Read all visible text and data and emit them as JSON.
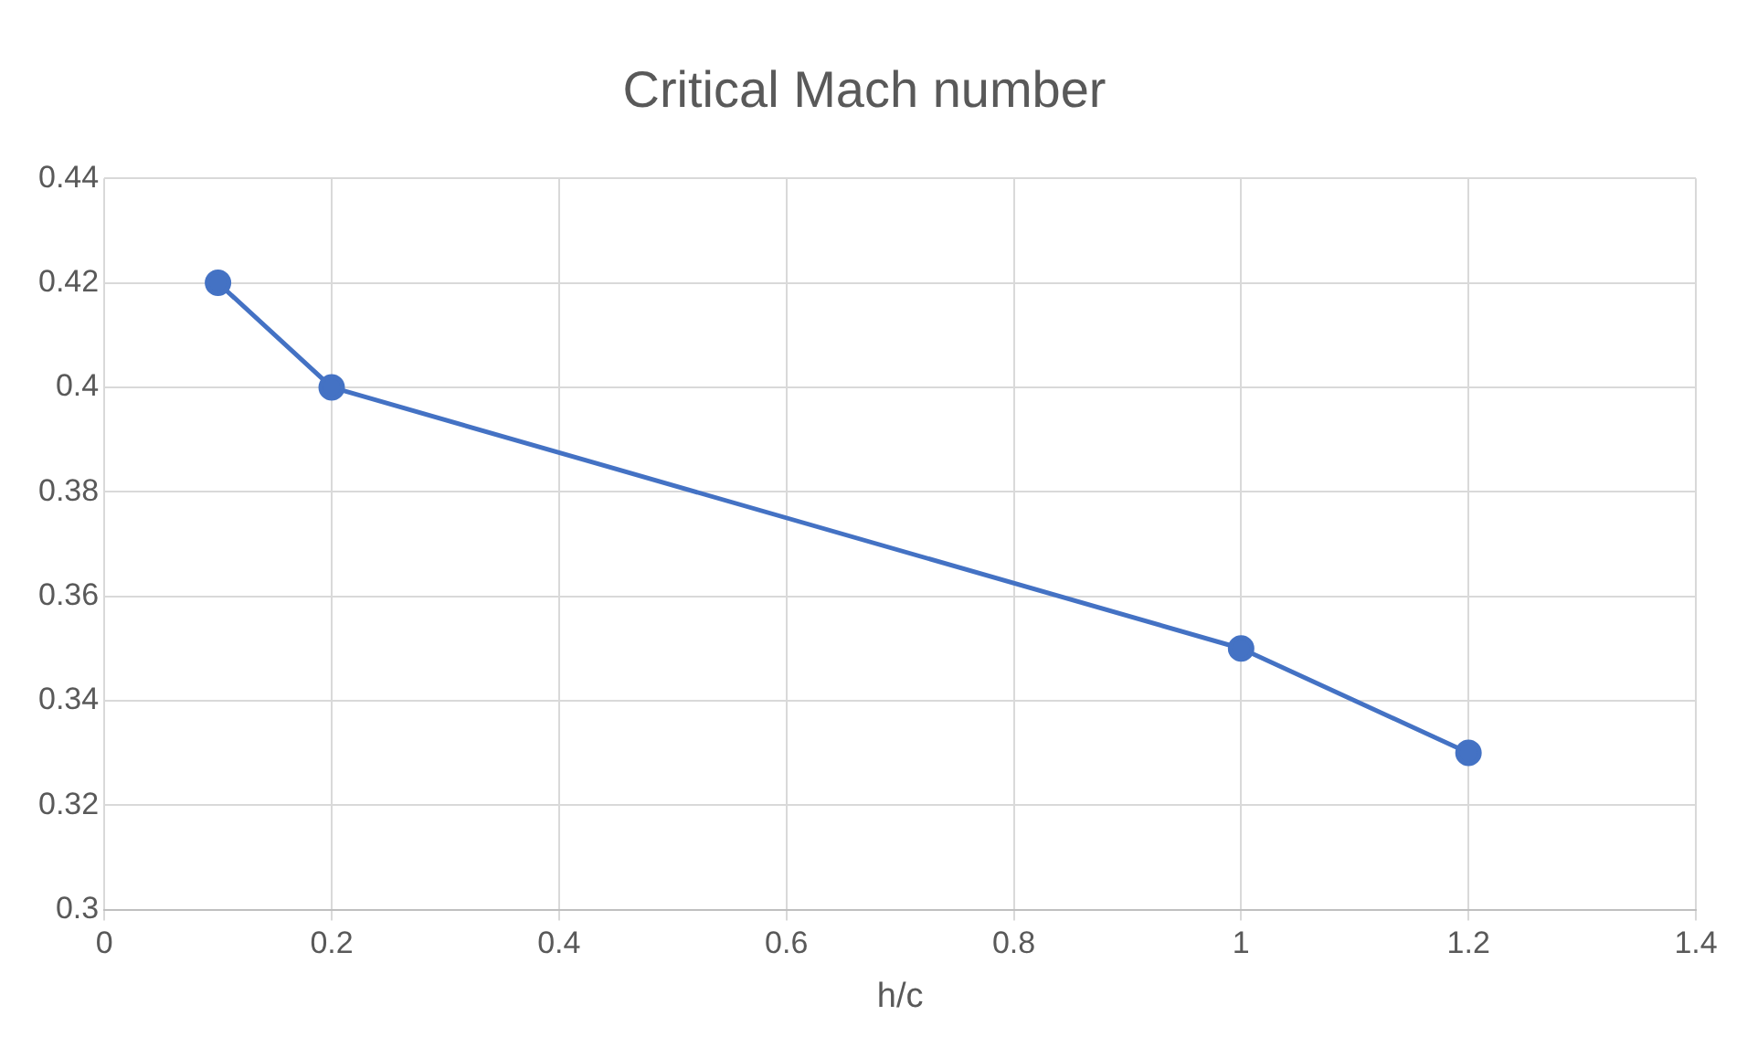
{
  "chart_data": {
    "type": "line",
    "title": "Critical Mach number",
    "xlabel": "h/c",
    "series": [
      {
        "color": "#4472c4",
        "x": [
          0.1,
          0.2,
          1,
          1.2
        ],
        "values": [
          0.42,
          0.4,
          0.35,
          0.33
        ]
      }
    ],
    "xlim": [
      0,
      1.4
    ],
    "xticks": [
      0,
      0.2,
      0.4,
      0.6,
      0.8,
      1,
      1.2,
      1.4
    ],
    "ylim": [
      0.3,
      0.44
    ],
    "yticks": [
      0.3,
      0.32,
      0.34,
      0.36,
      0.38,
      0.4,
      0.42,
      0.44
    ],
    "grid": true,
    "legend": false,
    "marker": "circle",
    "line_style": "solid"
  }
}
